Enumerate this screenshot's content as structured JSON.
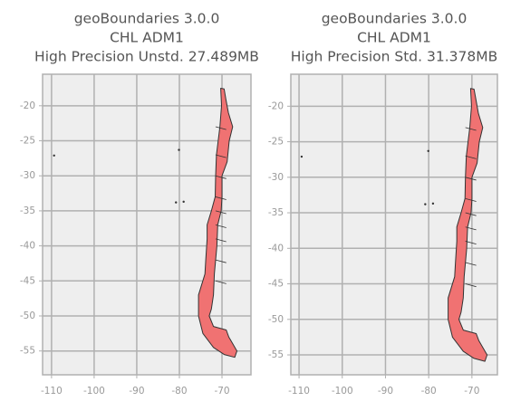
{
  "chart_data": [
    {
      "type": "map",
      "title": [
        "geoBoundaries 3.0.0",
        "CHL ADM1",
        "High Precision Unstd. 27.489MB"
      ],
      "xlim": [
        -112.1,
        -63.2
      ],
      "ylim": [
        -58.4,
        -15.5
      ],
      "xticks": [
        -110,
        -100,
        -90,
        -80,
        -70
      ],
      "yticks": [
        -55,
        -50,
        -45,
        -40,
        -35,
        -30,
        -25,
        -20
      ],
      "grid": true,
      "color": "#f07272"
    },
    {
      "type": "map",
      "title": [
        "geoBoundaries 3.0.0",
        "CHL ADM1",
        "High Precision Std. 31.378MB"
      ],
      "xlim": [
        -111.9,
        -64.1
      ],
      "ylim": [
        -57.8,
        -15.5
      ],
      "xticks": [
        -110,
        -100,
        -90,
        -80,
        -70
      ],
      "yticks": [
        -55,
        -50,
        -45,
        -40,
        -35,
        -30,
        -25,
        -20
      ],
      "grid": true,
      "color": "#f07272"
    }
  ]
}
